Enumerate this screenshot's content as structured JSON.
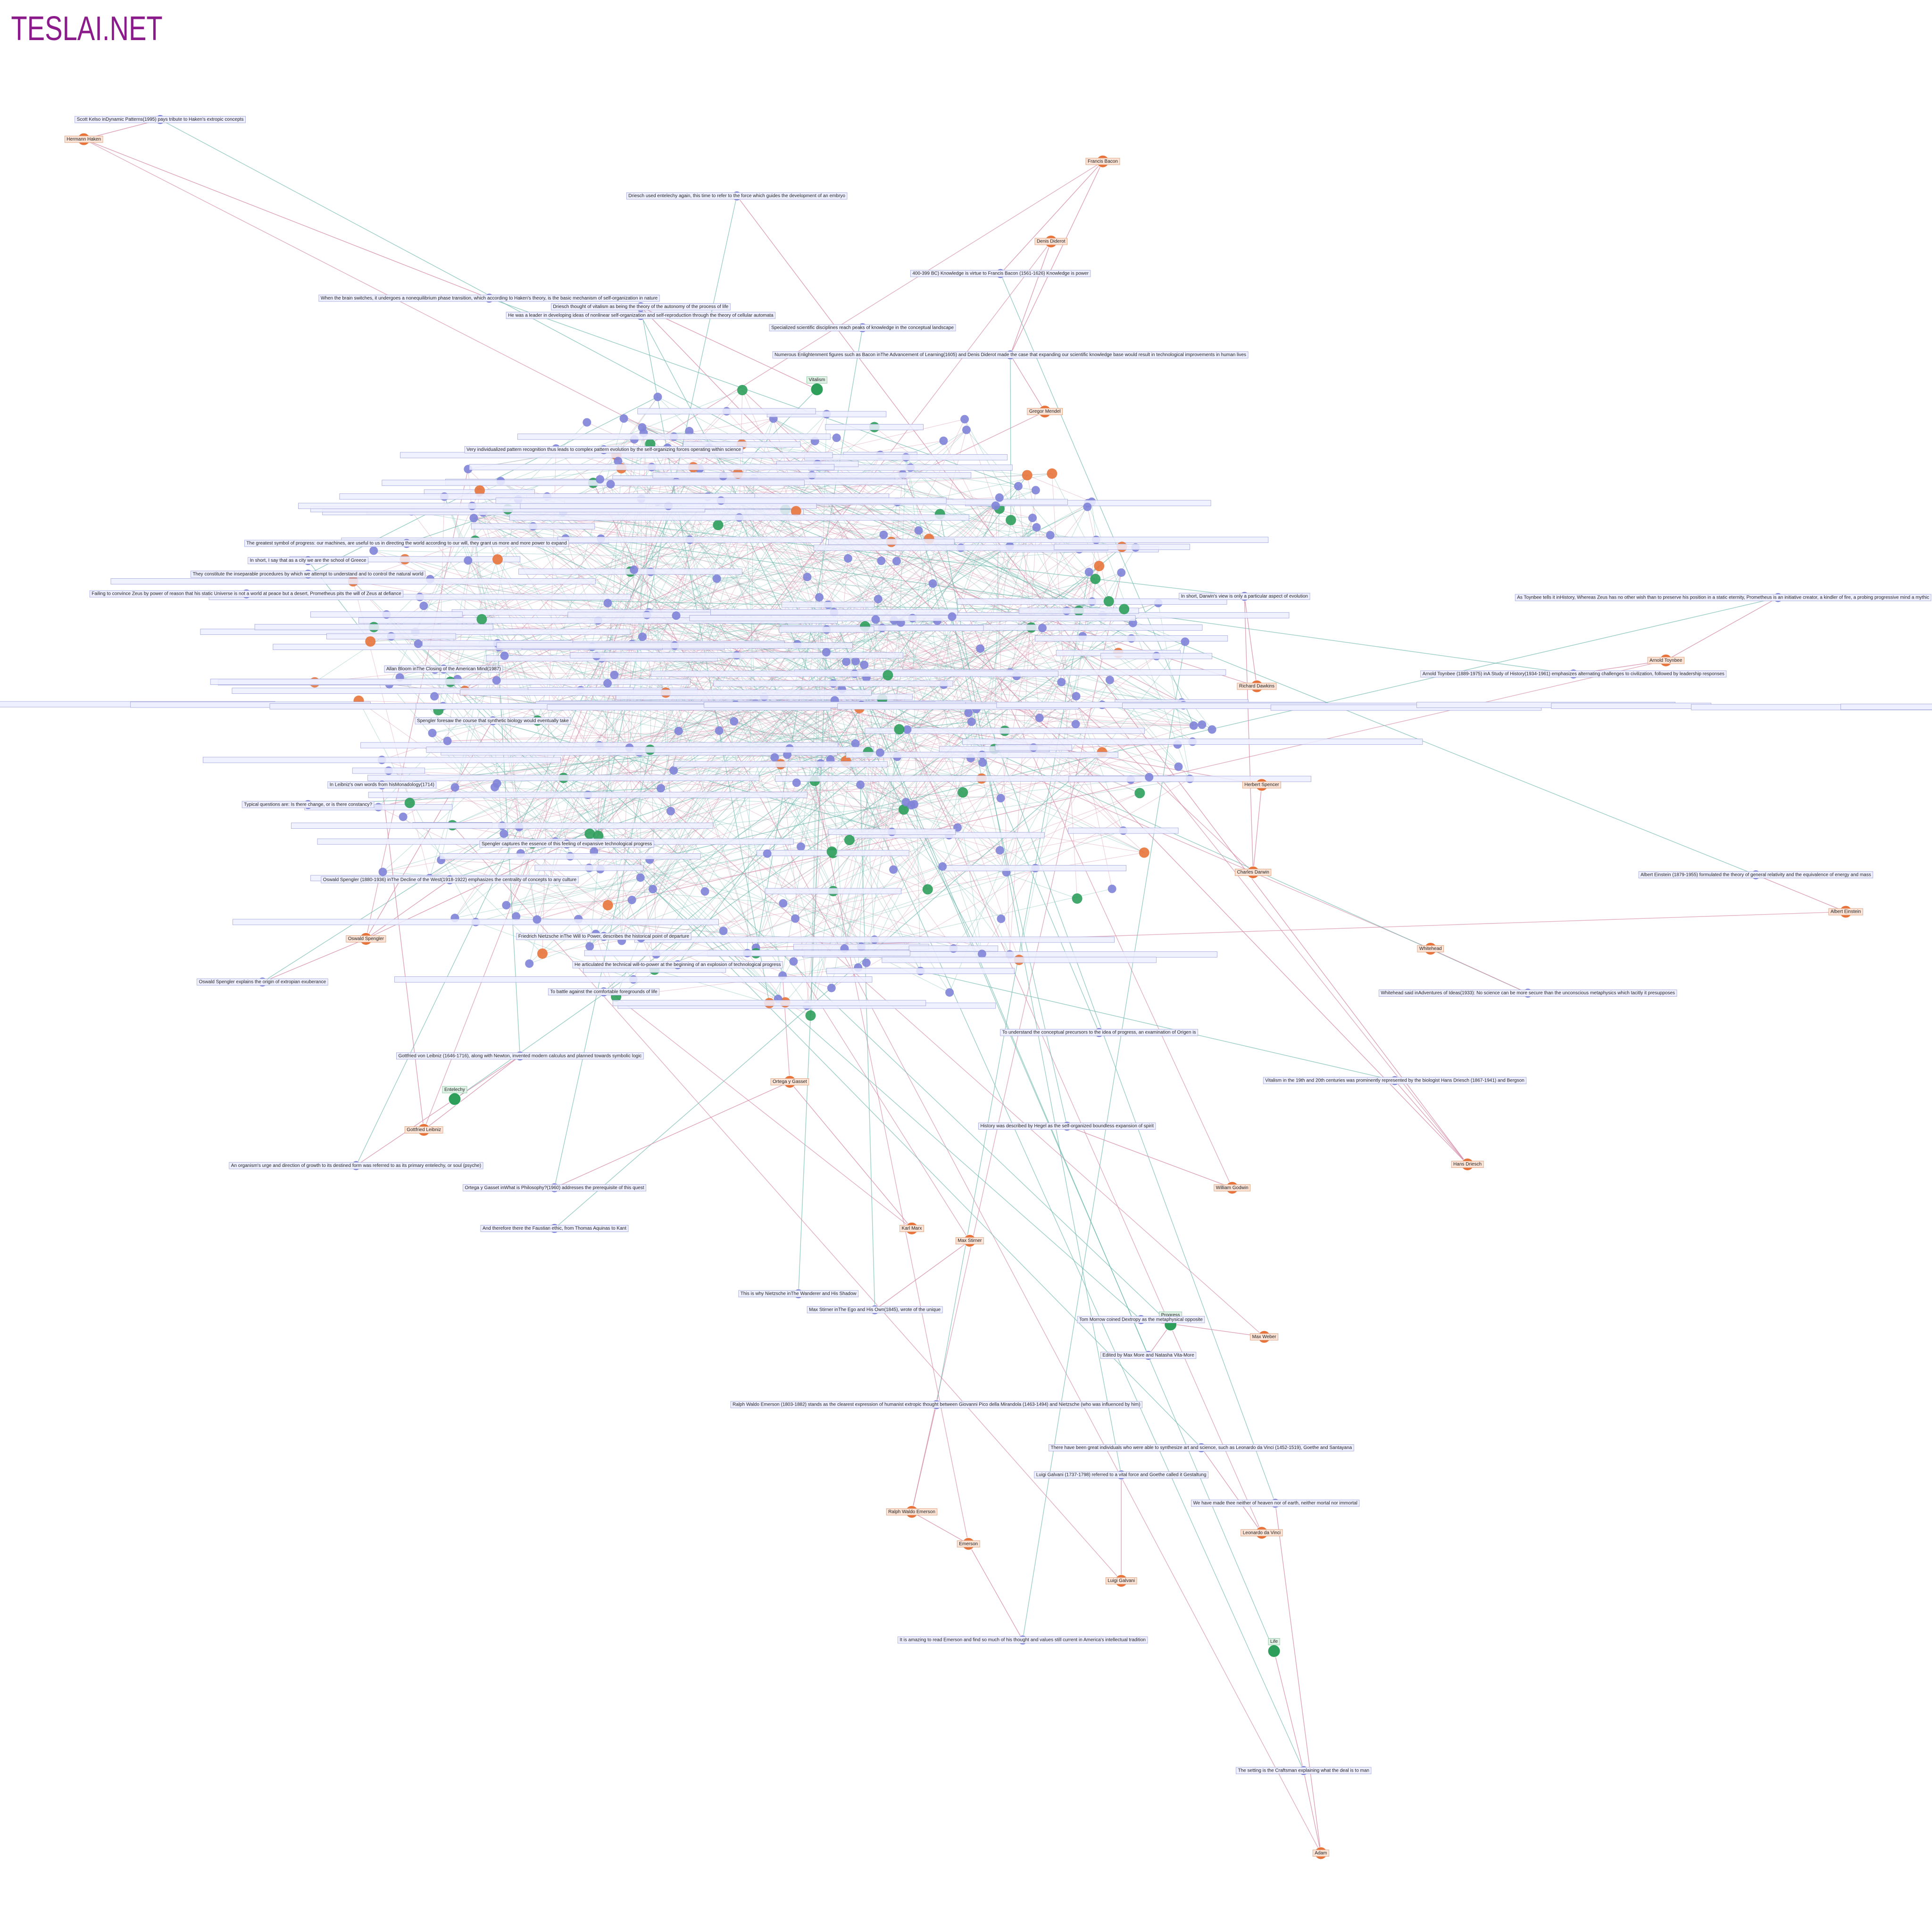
{
  "header": {
    "title": "TESLAI.NET"
  },
  "nodes": [
    {
      "label": "Hermann Haken",
      "kind": "person"
    },
    {
      "label": "Francis Bacon",
      "kind": "person"
    },
    {
      "label": "Denis Diderot",
      "kind": "person"
    },
    {
      "label": "Gregor Mendel",
      "kind": "person"
    },
    {
      "label": "Arnold Toynbee",
      "kind": "person"
    },
    {
      "label": "Albert Einstein",
      "kind": "person"
    },
    {
      "label": "Whitehead",
      "kind": "person"
    },
    {
      "label": "Hans Driesch",
      "kind": "person"
    },
    {
      "label": "Oswald Spengler",
      "kind": "person"
    },
    {
      "label": "Gottfried Leibniz",
      "kind": "person"
    },
    {
      "label": "Ortega y Gasset",
      "kind": "person"
    },
    {
      "label": "Karl Marx",
      "kind": "person"
    },
    {
      "label": "Max Weber",
      "kind": "person"
    },
    {
      "label": "Max Stirner",
      "kind": "person"
    },
    {
      "label": "Leonardo da Vinci",
      "kind": "person"
    },
    {
      "label": "Luigi Galvani",
      "kind": "person"
    },
    {
      "label": "Emerson",
      "kind": "person"
    },
    {
      "label": "Ralph Waldo Emerson",
      "kind": "person"
    },
    {
      "label": "Adam",
      "kind": "person"
    },
    {
      "label": "Charles Darwin",
      "kind": "person"
    },
    {
      "label": "Richard Dawkins",
      "kind": "person"
    },
    {
      "label": "Herbert Spencer",
      "kind": "person"
    },
    {
      "label": "William Godwin",
      "kind": "person"
    },
    {
      "label": "Vitalism",
      "kind": "concept"
    },
    {
      "label": "Life",
      "kind": "concept"
    },
    {
      "label": "Entelechy",
      "kind": "concept"
    },
    {
      "label": "Progress",
      "kind": "concept"
    },
    {
      "label": "Scott Kelso inDynamic Patterns(1995) pays tribute to Haken's extropic concepts",
      "kind": "quote"
    },
    {
      "label": "Driesch used entelechy again, this time to refer to the force which guides the development of an embryo",
      "kind": "quote"
    },
    {
      "label": "400-399 BC) Knowledge is virtue to Francis Bacon (1561-1626) Knowledge is power",
      "kind": "quote"
    },
    {
      "label": "Driesch thought of vitalism as being the theory of the autonomy of the process of life",
      "kind": "quote"
    },
    {
      "label": "He was a leader in developing ideas of nonlinear self-organization and self-reproduction through the theory of cellular automata",
      "kind": "quote"
    },
    {
      "label": "When the brain switches, it undergoes a nonequilibrium phase transition, which according to Haken's theory, is the basic mechanism of self-organization in nature",
      "kind": "quote"
    },
    {
      "label": "Specialized scientific disciplines reach peaks of knowledge in the conceptual landscape",
      "kind": "quote"
    },
    {
      "label": "Numerous Enlightenment figures such as Bacon inThe Advancement of Learning(1605) and Denis Diderot made the case that expanding our scientific knowledge base would result in technological improvements in human lives",
      "kind": "quote"
    },
    {
      "label": "Very individualized pattern recognition thus leads to complex pattern evolution by the self-organizing forces operating within science",
      "kind": "quote"
    },
    {
      "label": "The greatest symbol of progress: our machines, are useful to us in directing the world according to our will, they grant us more and more power to expand",
      "kind": "quote"
    },
    {
      "label": "In short, I say that as a city we are the school of Greece",
      "kind": "quote"
    },
    {
      "label": "They constitute the inseparable procedures by which we attempt to understand and to control the natural world",
      "kind": "quote"
    },
    {
      "label": "Failing to convince Zeus by power of reason that his static Universe is not a world at peace but a desert, Prometheus pits the will of Zeus at defiance",
      "kind": "quote"
    },
    {
      "label": "As Toynbee tells it inHistory, Whereas Zeus has no other wish than to preserve his position in a static eternity, Prometheus is an initiative creator, a kindler of fire, a probing progressive mind a mythic",
      "kind": "quote"
    },
    {
      "label": "Arnold Toynbee (1889-1975) inA Study of History(1934-1961) emphasizes alternating challenges to civilization, followed by leadership responses",
      "kind": "quote"
    },
    {
      "label": "In short, Darwin's view is only a particular aspect of evolution",
      "kind": "quote"
    },
    {
      "label": "Albert Einstein (1879-1955) formulated the theory of general relativity and the equivalence of energy and mass",
      "kind": "quote"
    },
    {
      "label": "Whitehead said inAdventures of Ideas(1933): No science can be more secure than the unconscious metaphysics which tacitly it presupposes",
      "kind": "quote"
    },
    {
      "label": "Vitalism in the 19th and 20th centuries was prominently represented by the biologist Hans Driesch (1867-1941) and Bergson",
      "kind": "quote"
    },
    {
      "label": "Oswald Spengler explains the origin of extropian exuberance",
      "kind": "quote"
    },
    {
      "label": "Oswald Spengler (1880-1936) inThe Decline of the West(1918-1922) emphasizes the centrality of concepts to any culture",
      "kind": "quote"
    },
    {
      "label": "Gottfried von Leibniz (1646-1716), along with Newton, invented modern calculus and planned towards symbolic logic",
      "kind": "quote"
    },
    {
      "label": "An organism's urge and direction of growth to its destined form was referred to as its primary entelechy, or soul (psyche)",
      "kind": "quote"
    },
    {
      "label": "And therefore there the Faustian ethic, from Thomas Aquinas to Kant",
      "kind": "quote"
    },
    {
      "label": "Ortega y Gasset inWhat is Philosophy?(1960) addresses the prerequisite of this quest",
      "kind": "quote"
    },
    {
      "label": "Max Stirner inThe Ego and His Own(1845), wrote of the unique",
      "kind": "quote"
    },
    {
      "label": "Tom Morrow coined Dextropy as the metaphysical opposite",
      "kind": "quote"
    },
    {
      "label": "Edited by Max More and Natasha Vita-More",
      "kind": "quote"
    },
    {
      "label": "Ralph Waldo Emerson (1803-1882) stands as the clearest expression of humanist extropic thought between Giovanni Pico della Mirandola (1463-1494) and Nietzsche (who was influenced by him)",
      "kind": "quote"
    },
    {
      "label": "Luigi Galvani (1737-1798) referred to a vital force and Goethe called it Gestaltung",
      "kind": "quote"
    },
    {
      "label": "There have been great individuals who were able to synthesize art and science, such as Leonardo da Vinci (1452-1519), Goethe and Santayana",
      "kind": "quote"
    },
    {
      "label": "We have made thee neither of heaven nor of earth, neither mortal nor immortal",
      "kind": "quote"
    },
    {
      "label": "It is amazing to read Emerson and find so much of his thought and values still current in America's intellectual tradition",
      "kind": "quote"
    },
    {
      "label": "The setting is the Craftsman explaining what the deal is to man",
      "kind": "quote"
    },
    {
      "label": "This is why Nietzsche inThe Wanderer and His Shadow",
      "kind": "quote"
    },
    {
      "label": "History was described by Hegel as the self-organized boundless expansion of spirit",
      "kind": "quote"
    },
    {
      "label": "To understand the conceptual precursors to the idea of progress, an examination of Origen is",
      "kind": "quote"
    },
    {
      "label": "Friedrich Nietzsche inThe Will to Power, describes the historical point of departure",
      "kind": "quote"
    },
    {
      "label": "He articulated the technical will-to-power at the beginning of an explosion of technological progress",
      "kind": "quote"
    },
    {
      "label": "To battle against the comfortable foregrounds of life",
      "kind": "quote"
    },
    {
      "label": "Typical questions are: Is there change, or is there constancy?",
      "kind": "quote"
    },
    {
      "label": "In Leibniz's own words from hisMonadology(1714)",
      "kind": "quote"
    },
    {
      "label": "Spengler foresaw the course that synthetic biology would eventually take",
      "kind": "quote"
    },
    {
      "label": "Spengler captures the essence of this feeling of expansive technological progress",
      "kind": "quote"
    },
    {
      "label": "Allan Bloom inThe Closing of the American Mind(1987)",
      "kind": "quote"
    }
  ]
}
